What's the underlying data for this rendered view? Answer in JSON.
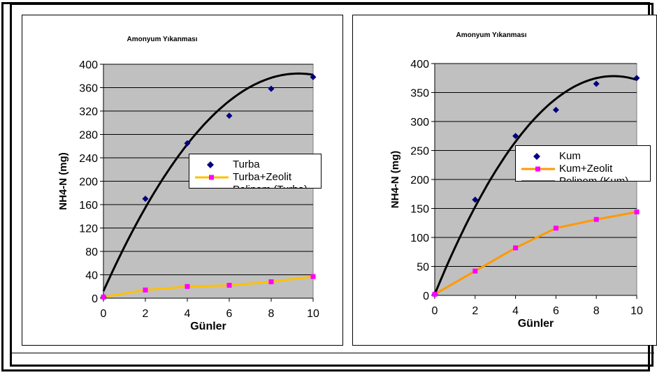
{
  "colors": {
    "plot_bg": "#c0c0c0",
    "grid": "#000000",
    "series_a_marker": "#000080",
    "series_b_line": "#ffc000",
    "series_b_line_right": "#ff9900",
    "series_b_marker": "#ff00ff",
    "trend": "#000000"
  },
  "chart_data": [
    {
      "type": "scatter",
      "title": "Amonyum Yıkanması",
      "xlabel": "Günler",
      "ylabel": "NH4-N  (mg)",
      "xlim": [
        0,
        10
      ],
      "ylim": [
        0,
        400
      ],
      "xticks": [
        0,
        2,
        4,
        6,
        8,
        10
      ],
      "yticks": [
        0,
        40,
        80,
        120,
        160,
        200,
        240,
        280,
        320,
        360,
        400
      ],
      "grid": true,
      "legend_position": "right",
      "series": [
        {
          "name": "Turba",
          "marker": "diamond",
          "x": [
            0,
            2,
            4,
            6,
            8,
            10
          ],
          "y": [
            2,
            170,
            265,
            312,
            358,
            378
          ]
        },
        {
          "name": "Turba+Zeolit",
          "marker": "square",
          "line": true,
          "x": [
            0,
            2,
            4,
            6,
            8,
            10
          ],
          "y": [
            2,
            14,
            20,
            22,
            28,
            37
          ]
        },
        {
          "name": "Polinom (Turba)",
          "trend": "polynomial",
          "coefficients": [
            12,
            80,
            -4.3
          ]
        }
      ]
    },
    {
      "type": "scatter",
      "title": "Amonyum Yıkanması",
      "xlabel": "Günler",
      "ylabel": "NH4-N  (mg)",
      "xlim": [
        0,
        10
      ],
      "ylim": [
        0,
        400
      ],
      "xticks": [
        0,
        2,
        4,
        6,
        8,
        10
      ],
      "yticks": [
        0,
        50,
        100,
        150,
        200,
        250,
        300,
        350,
        400
      ],
      "grid": true,
      "legend_position": "right",
      "series": [
        {
          "name": "Kum",
          "marker": "diamond",
          "x": [
            0,
            2,
            4,
            6,
            8,
            10
          ],
          "y": [
            2,
            165,
            275,
            320,
            365,
            375
          ]
        },
        {
          "name": "Kum+Zeolit",
          "marker": "square",
          "line": true,
          "x": [
            0,
            2,
            4,
            6,
            8,
            10
          ],
          "y": [
            2,
            42,
            82,
            116,
            131,
            144
          ]
        },
        {
          "name": "Polinom (Kum)",
          "trend": "polynomial",
          "coefficients": [
            2,
            85,
            -4.8
          ]
        }
      ]
    }
  ]
}
